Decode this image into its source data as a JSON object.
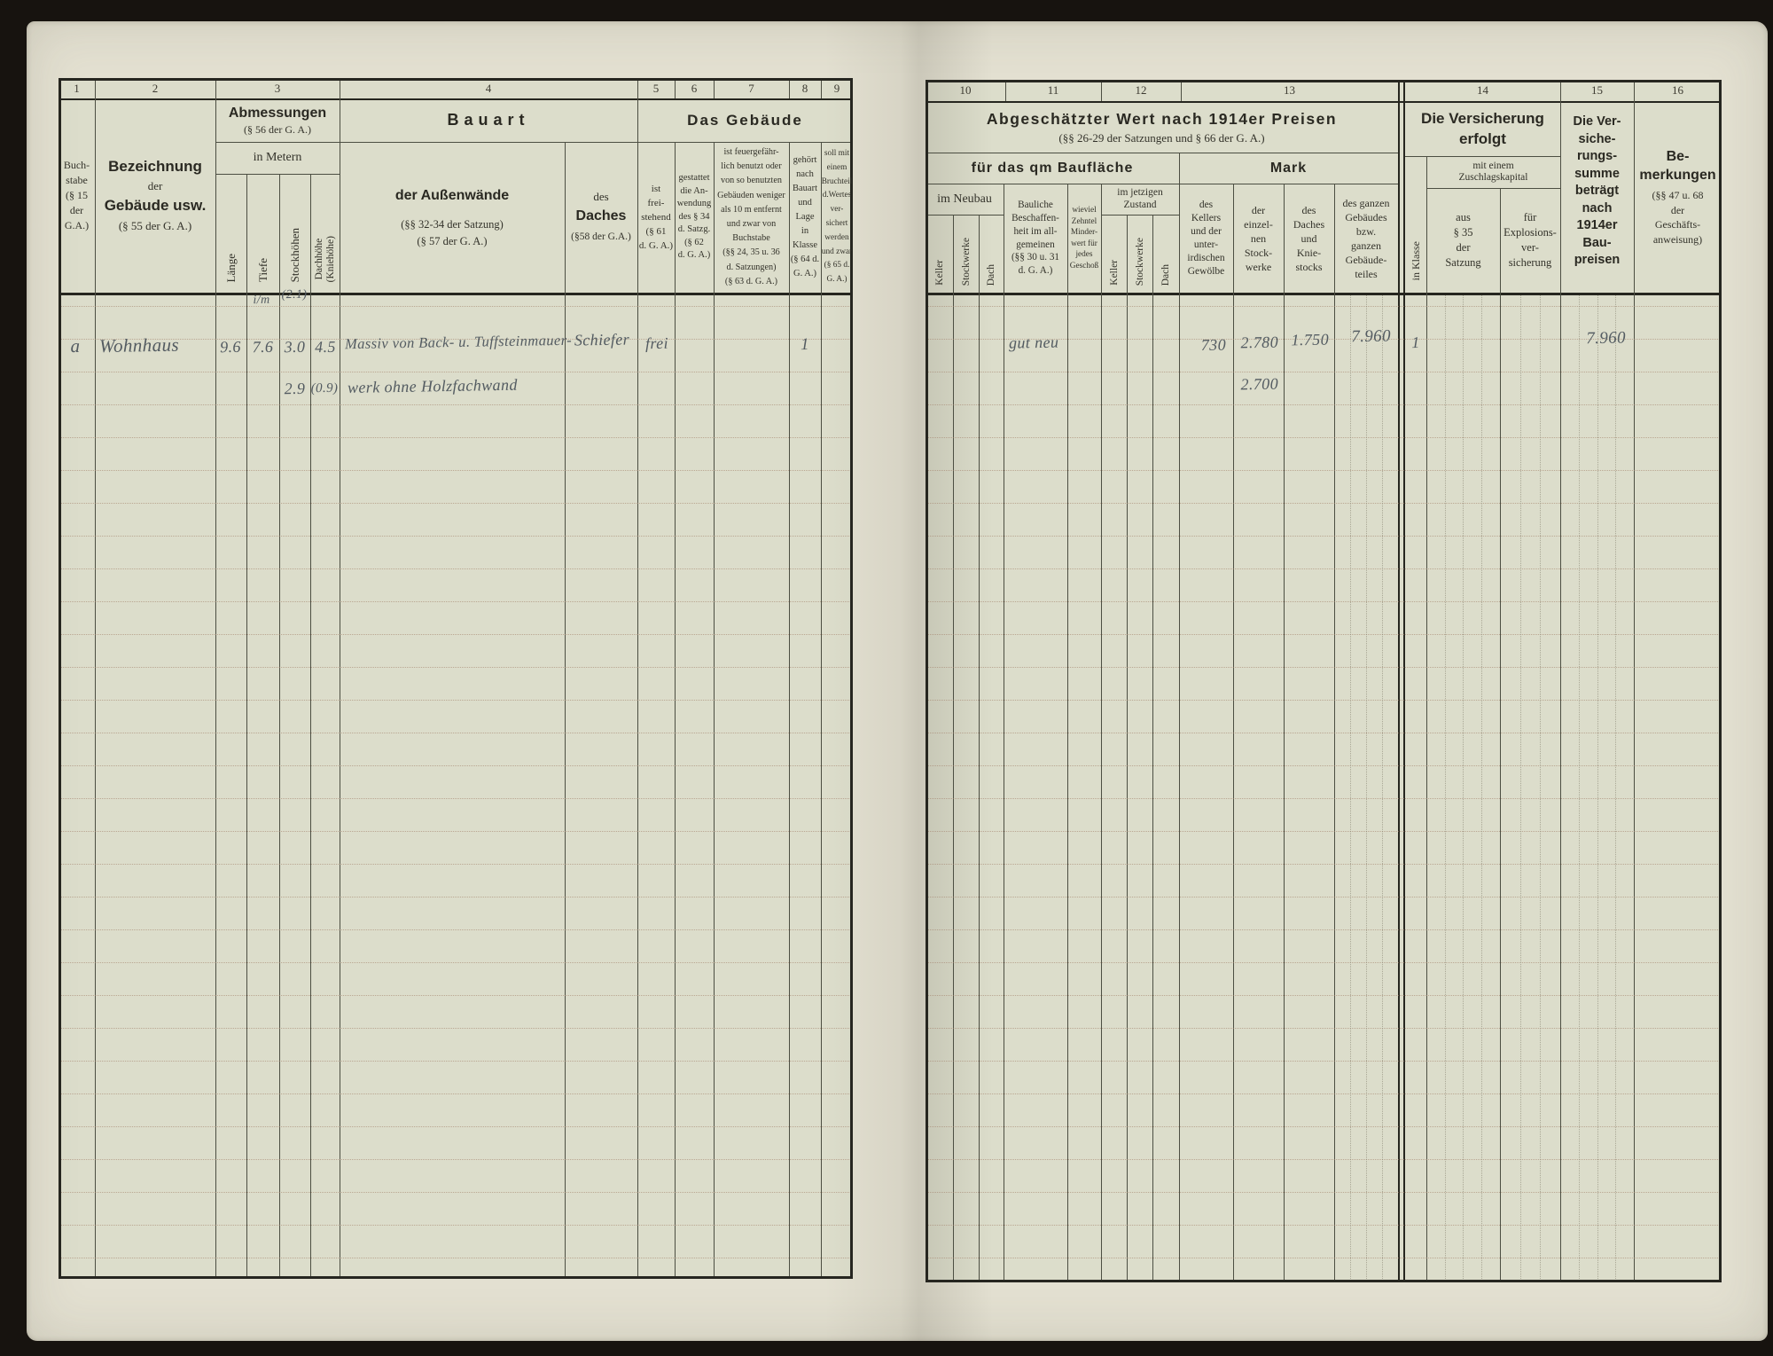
{
  "left": {
    "nums": [
      "1",
      "2",
      "3",
      "4",
      "5",
      "6",
      "7",
      "8",
      "9"
    ],
    "col1": "Buch-\nstabe\n(§ 15\nder\nG.A.)",
    "col2": {
      "l1": "Bezeichnung",
      "l2": "der",
      "l3": "Gebäude usw.",
      "l4": "(§ 55 der G. A.)"
    },
    "col3": {
      "title": "Abmessungen",
      "ref": "(§ 56 der G. A.)",
      "unit": "in Metern",
      "laenge": "Länge",
      "tiefe": "Tiefe",
      "stock": "Stockhöhen",
      "dach": "Dachhöhe\n(Kniehöhe)"
    },
    "col4": {
      "title": "Bauart",
      "aussen_title": "der Außenwände",
      "aussen_ref1": "(§§ 32-34 der Satzung)",
      "aussen_ref2": "(§ 57 der G. A.)",
      "dach_pre": "des",
      "dach_title": "Daches",
      "dach_ref": "(§58 der G.A.)"
    },
    "gebaeude_title": "Das Gebäude",
    "col5": "ist\nfrei-\nstehend\n(§ 61\nd. G. A.)",
    "col6": "gestattet\ndie An-\nwendung\ndes § 34\nd. Satzg.\n(§ 62\nd. G. A.)",
    "col7": "ist feuergefähr-\nlich benutzt oder\nvon so benutzten\nGebäuden weniger\nals 10 m entfernt\nund zwar von\nBuchstabe\n(§§ 24, 35 u. 36\nd. Satzungen)\n(§ 63 d. G. A.)",
    "col8": "gehört\nnach\nBauart\nund\nLage\nin\nKlasse\n(§ 64 d.\nG. A.)",
    "col9": "soll mit\neinem\nBruchteil\nd.Wertes\nver-\nsichert\nwerden\nund zwar\n(§ 65 d.\nG. A.)",
    "entry": {
      "buchstabe": "a",
      "bezeichnung": "Wohnhaus",
      "note1": "i/m",
      "note2": "(2.1)",
      "laenge": "9.6",
      "tiefe": "7.6",
      "stock1": "3.0",
      "stock2": "2.9",
      "dach1": "4.5",
      "dach2": "(0.9)",
      "aussen1": "Massiv von Back- u. Tuffsteinmauer-",
      "aussen2": "werk ohne Holzfachwand",
      "daches": "Schiefer",
      "frei": "frei",
      "klasse": "1"
    }
  },
  "right": {
    "nums": [
      "10",
      "11",
      "12",
      "13",
      "14",
      "15",
      "16"
    ],
    "wert_title": "Abgeschätzter Wert nach 1914er Preisen",
    "wert_ref": "(§§ 26-29 der Satzungen und § 66 der G. A.)",
    "qm": "für das qm Baufläche",
    "mark": "Mark",
    "neubau": "im Neubau",
    "keller": "Keller",
    "stockwerke": "Stockwerke",
    "dach": "Dach",
    "bauliche": "Bauliche\nBeschaffen-\nheit im all-\ngemeinen\n(§§ 30 u. 31\nd. G. A.)",
    "zehntel": "wieviel\nZehntel\nMinder-\nwert für\njedes\nGeschoß",
    "zustand": "im jetzigen\nZustand",
    "kellers": "des\nKellers\nund der\nunter-\nirdischen\nGewölbe",
    "stockwerke2": "der\neinzel-\nnen\nStock-\nwerke",
    "daches2": "des\nDaches\nund\nKnie-\nstocks",
    "ganzen": "des ganzen\nGebäudes\nbzw.\nganzen\nGebäude-\nteiles",
    "klasse_v": "in Klasse",
    "vers_title": "Die Versicherung\nerfolgt",
    "zuschlag": "mit einem\nZuschlagskapital",
    "aus35": "aus\n§ 35\nder\nSatzung",
    "explosion": "für\nExplosions-\nver-\nsicherung",
    "summe": "Die Ver-\nsiche-\nrungs-\nsumme\nbeträgt\nnach\n1914er\nBau-\npreisen",
    "bemerk_title": "Be-\nmerkungen",
    "bemerk_ref": "(§§ 47 u. 68\nder\nGeschäfts-\nanweisung)",
    "entry": {
      "beschaffenheit": "gut neu",
      "keller_wert": "730",
      "stock_wert1": "2.780",
      "stock_wert2": "2.700",
      "dach_wert": "1.750",
      "gesamt_wert": "7.960",
      "klasse": "1",
      "summe": "7.960"
    }
  }
}
